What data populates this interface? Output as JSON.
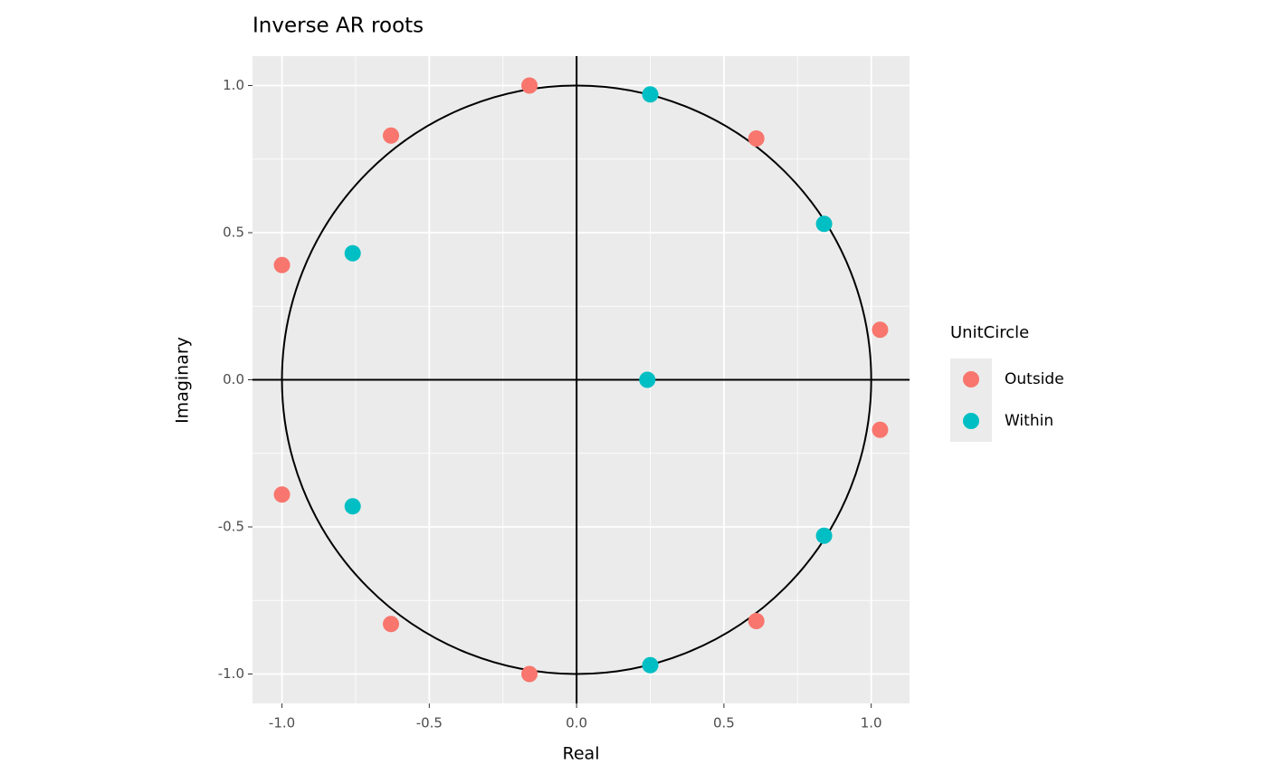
{
  "chart_data": {
    "type": "scatter",
    "title": "Inverse AR roots",
    "x_label": "Real",
    "y_label": "Imaginary",
    "legend_title": "UnitCircle",
    "xlim": [
      -1.1,
      1.13
    ],
    "ylim": [
      -1.1,
      1.1
    ],
    "xticks": [
      {
        "value": -1,
        "label": "-1.0"
      },
      {
        "value": -0.5,
        "label": "-0.5"
      },
      {
        "value": 0,
        "label": "0.0"
      },
      {
        "value": 0.5,
        "label": "0.5"
      },
      {
        "value": 1,
        "label": "1.0"
      }
    ],
    "yticks": [
      {
        "value": -1,
        "label": "-1.0"
      },
      {
        "value": -0.5,
        "label": "-0.5"
      },
      {
        "value": 0,
        "label": "0.0"
      },
      {
        "value": 0.5,
        "label": "0.5"
      },
      {
        "value": 1,
        "label": "1.0"
      }
    ],
    "grid": true,
    "minor_grid": true,
    "legend_position": "right",
    "series": [
      {
        "name": "Outside",
        "color": "#F8766D",
        "x": [
          -0.16,
          -0.63,
          0.61,
          -1.0,
          1.03,
          1.03,
          -1.0,
          0.61,
          -0.63,
          -0.16
        ],
        "values": [
          1.0,
          0.83,
          0.82,
          0.39,
          0.17,
          -0.17,
          -0.39,
          -0.82,
          -0.83,
          -1.0
        ]
      },
      {
        "name": "Within",
        "color": "#00BFC4",
        "x": [
          0.25,
          0.84,
          -0.76,
          0.24,
          -0.76,
          0.84,
          0.25
        ],
        "values": [
          0.97,
          0.53,
          0.43,
          0.0,
          -0.43,
          -0.53,
          -0.97
        ]
      }
    ]
  }
}
